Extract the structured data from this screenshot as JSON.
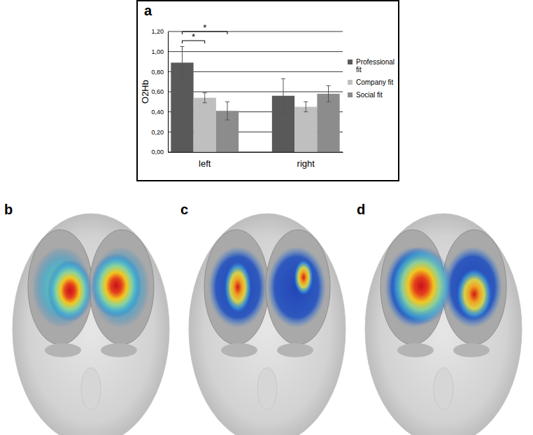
{
  "chart_data": {
    "type": "bar",
    "categories": [
      "left",
      "right"
    ],
    "series": [
      {
        "name": "Professional fit",
        "color": "#595959",
        "values": [
          0.89,
          0.56
        ],
        "errors": [
          0.16,
          0.17
        ]
      },
      {
        "name": "Company fit",
        "color": "#bfbfbf",
        "values": [
          0.54,
          0.45
        ],
        "errors": [
          0.05,
          0.05
        ]
      },
      {
        "name": "Social fit",
        "color": "#8c8c8c",
        "values": [
          0.41,
          0.58
        ],
        "errors": [
          0.09,
          0.08
        ]
      }
    ],
    "y_label": "O2Hb",
    "ylim": [
      0,
      1.2
    ],
    "yticks": [
      {
        "value": 0,
        "label": "0,00"
      },
      {
        "value": 0.2,
        "label": "0,20"
      },
      {
        "value": 0.4,
        "label": "0,40"
      },
      {
        "value": 0.6,
        "label": "0,60"
      },
      {
        "value": 0.8,
        "label": "0,80"
      },
      {
        "value": 1,
        "label": "1,00"
      },
      {
        "value": 1.2,
        "label": "1,20"
      }
    ],
    "grid": true,
    "legend": "right",
    "annotations": [
      {
        "text": "*",
        "category": "left",
        "from": "Professional fit",
        "to": "Company fit"
      },
      {
        "text": "*",
        "category": "left",
        "from": "Professional fit",
        "to": "Social fit"
      }
    ]
  },
  "panels": [
    {
      "label": "a"
    },
    {
      "label": "b"
    },
    {
      "label": "c"
    },
    {
      "label": "d"
    }
  ]
}
